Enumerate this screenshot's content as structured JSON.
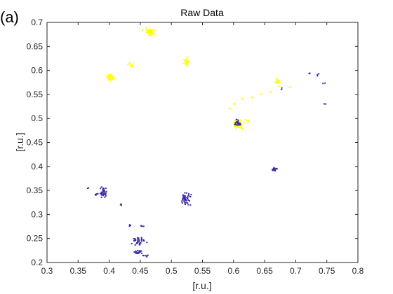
{
  "panel_label": "(a)",
  "chart_data": {
    "type": "scatter",
    "title": "Raw Data",
    "xlabel": "[r.u.]",
    "ylabel": "[r.u.]",
    "xlim": [
      0.3,
      0.8
    ],
    "ylim": [
      0.2,
      0.7
    ],
    "xticks": [
      "0.3",
      "0.35",
      "0.4",
      "0.45",
      "0.5",
      "0.55",
      "0.6",
      "0.65",
      "0.7",
      "0.75",
      "0.8"
    ],
    "yticks": [
      "0.2",
      "0.25",
      "0.3",
      "0.35",
      "0.4",
      "0.45",
      "0.5",
      "0.55",
      "0.6",
      "0.65",
      "0.7"
    ],
    "grid": false,
    "box": true,
    "colors": {
      "yellow": "#ffff00",
      "blue": "#3d2fa8"
    },
    "series": [
      {
        "color": "#ffff00",
        "clusters": [
          {
            "x": 0.465,
            "y": 0.68,
            "sx": 0.004,
            "sy": 0.004,
            "n": 45
          },
          {
            "x": 0.402,
            "y": 0.585,
            "sx": 0.003,
            "sy": 0.003,
            "n": 35
          },
          {
            "x": 0.432,
            "y": 0.612,
            "sx": 0.004,
            "sy": 0.002,
            "n": 8
          },
          {
            "x": 0.525,
            "y": 0.618,
            "sx": 0.002,
            "sy": 0.004,
            "n": 30
          },
          {
            "x": 0.608,
            "y": 0.487,
            "sx": 0.004,
            "sy": 0.004,
            "n": 60
          },
          {
            "x": 0.62,
            "y": 0.495,
            "sx": 0.002,
            "sy": 0.002,
            "n": 6
          },
          {
            "x": 0.672,
            "y": 0.575,
            "sx": 0.002,
            "sy": 0.003,
            "n": 18
          },
          {
            "x": 0.66,
            "y": 0.555,
            "sx": 0.001,
            "sy": 0.001,
            "n": 2
          },
          {
            "x": 0.645,
            "y": 0.55,
            "sx": 0.001,
            "sy": 0.001,
            "n": 2
          },
          {
            "x": 0.63,
            "y": 0.545,
            "sx": 0.001,
            "sy": 0.001,
            "n": 2
          },
          {
            "x": 0.615,
            "y": 0.54,
            "sx": 0.001,
            "sy": 0.001,
            "n": 2
          },
          {
            "x": 0.6,
            "y": 0.53,
            "sx": 0.001,
            "sy": 0.001,
            "n": 2
          },
          {
            "x": 0.69,
            "y": 0.565,
            "sx": 0.001,
            "sy": 0.001,
            "n": 2
          },
          {
            "x": 0.595,
            "y": 0.52,
            "sx": 0.001,
            "sy": 0.001,
            "n": 2
          }
        ]
      },
      {
        "color": "#3d2fa8",
        "clusters": [
          {
            "x": 0.606,
            "y": 0.491,
            "sx": 0.003,
            "sy": 0.003,
            "n": 25
          },
          {
            "x": 0.666,
            "y": 0.394,
            "sx": 0.002,
            "sy": 0.002,
            "n": 20
          },
          {
            "x": 0.522,
            "y": 0.332,
            "sx": 0.004,
            "sy": 0.006,
            "n": 45
          },
          {
            "x": 0.39,
            "y": 0.345,
            "sx": 0.003,
            "sy": 0.006,
            "n": 35
          },
          {
            "x": 0.378,
            "y": 0.342,
            "sx": 0.002,
            "sy": 0.002,
            "n": 5
          },
          {
            "x": 0.366,
            "y": 0.354,
            "sx": 0.001,
            "sy": 0.001,
            "n": 2
          },
          {
            "x": 0.419,
            "y": 0.32,
            "sx": 0.001,
            "sy": 0.001,
            "n": 3
          },
          {
            "x": 0.434,
            "y": 0.277,
            "sx": 0.001,
            "sy": 0.001,
            "n": 3
          },
          {
            "x": 0.455,
            "y": 0.276,
            "sx": 0.002,
            "sy": 0.001,
            "n": 4
          },
          {
            "x": 0.448,
            "y": 0.244,
            "sx": 0.005,
            "sy": 0.004,
            "n": 35
          },
          {
            "x": 0.446,
            "y": 0.222,
            "sx": 0.004,
            "sy": 0.002,
            "n": 25
          },
          {
            "x": 0.458,
            "y": 0.214,
            "sx": 0.003,
            "sy": 0.001,
            "n": 8
          },
          {
            "x": 0.722,
            "y": 0.593,
            "sx": 0.001,
            "sy": 0.001,
            "n": 3
          },
          {
            "x": 0.736,
            "y": 0.591,
            "sx": 0.001,
            "sy": 0.001,
            "n": 3
          },
          {
            "x": 0.745,
            "y": 0.573,
            "sx": 0.001,
            "sy": 0.001,
            "n": 2
          },
          {
            "x": 0.746,
            "y": 0.531,
            "sx": 0.001,
            "sy": 0.001,
            "n": 2
          },
          {
            "x": 0.678,
            "y": 0.562,
            "sx": 0.001,
            "sy": 0.001,
            "n": 2
          }
        ]
      }
    ]
  }
}
